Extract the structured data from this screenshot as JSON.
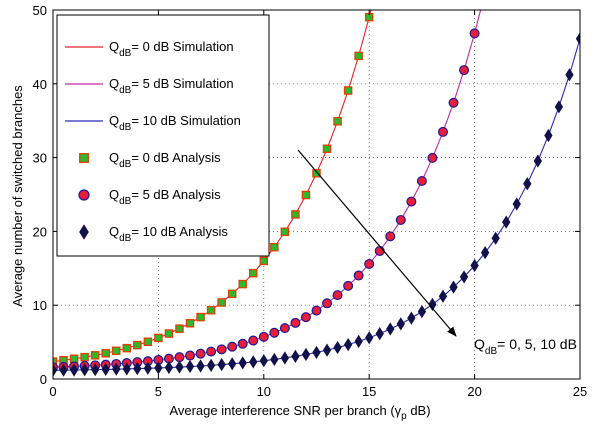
{
  "chart_data": {
    "type": "line",
    "xlabel": "Average interference SNR per branch (γ",
    "xlabel_sub": "p",
    "xlabel_unit": " dB)",
    "ylabel": "Average number of switched branches",
    "xlim": [
      0,
      25
    ],
    "ylim": [
      0,
      50
    ],
    "xticks": [
      0,
      5,
      10,
      15,
      20,
      25
    ],
    "yticks": [
      0,
      10,
      20,
      30,
      40,
      50
    ],
    "grid": true,
    "legend_position": "top-left",
    "annotation": {
      "prefix": "Q",
      "sub": "dB",
      "suffix": "= 0, 5, 10 dB"
    },
    "series": [
      {
        "name_prefix": "Q",
        "name_sub": "dB",
        "name_suffix": "= 0 dB Simulation",
        "kind": "line",
        "color": "#e8202a",
        "group": "q0"
      },
      {
        "name_prefix": "Q",
        "name_sub": "dB",
        "name_suffix": "= 5 dB Simulation",
        "kind": "line",
        "color": "#c02aa8",
        "group": "q5"
      },
      {
        "name_prefix": "Q",
        "name_sub": "dB",
        "name_suffix": "= 10 dB Simulation",
        "kind": "line",
        "color": "#2a2ab8",
        "group": "q10"
      },
      {
        "name_prefix": "Q",
        "name_sub": "dB",
        "name_suffix": "= 0 dB Analysis",
        "kind": "marker",
        "marker": "square",
        "color": "#2db82d",
        "edge": "#e04000",
        "group": "q0"
      },
      {
        "name_prefix": "Q",
        "name_sub": "dB",
        "name_suffix": "= 5 dB Analysis",
        "kind": "marker",
        "marker": "circle",
        "color": "#e81e3a",
        "edge": "#1a1a9a",
        "group": "q5"
      },
      {
        "name_prefix": "Q",
        "name_sub": "dB",
        "name_suffix": "= 10 dB Analysis",
        "kind": "marker",
        "marker": "diamond",
        "color": "#12124a",
        "edge": "#12124a",
        "group": "q10"
      }
    ],
    "curves": {
      "q0": {
        "x": [
          0,
          0.5,
          1,
          1.5,
          2,
          2.5,
          3,
          3.5,
          4,
          4.5,
          5,
          5.5,
          6,
          6.5,
          7,
          7.5,
          8,
          8.5,
          9,
          9.5,
          10,
          10.5,
          11,
          11.5,
          12,
          12.5,
          13,
          13.5,
          14,
          14.5,
          15,
          15.5
        ],
        "y": [
          2.36,
          2.54,
          2.74,
          2.96,
          3.21,
          3.49,
          3.82,
          4.18,
          4.59,
          5.05,
          5.57,
          6.16,
          6.82,
          7.56,
          8.39,
          9.32,
          10.37,
          11.54,
          12.86,
          14.34,
          16.0,
          17.86,
          19.95,
          22.3,
          24.93,
          27.88,
          31.2,
          34.92,
          39.09,
          43.78,
          49.03,
          54.94
        ]
      },
      "q5": {
        "x": [
          0,
          0.5,
          1,
          1.5,
          2,
          2.5,
          3,
          3.5,
          4,
          4.5,
          5,
          5.5,
          6,
          6.5,
          7,
          7.5,
          8,
          8.5,
          9,
          9.5,
          10,
          10.5,
          11,
          11.5,
          12,
          12.5,
          13,
          13.5,
          14,
          14.5,
          15,
          15.5,
          16,
          16.5,
          17,
          17.5,
          18,
          18.5,
          19,
          19.5,
          20,
          20.5
        ],
        "y": [
          1.58,
          1.64,
          1.7,
          1.77,
          1.85,
          1.94,
          2.04,
          2.16,
          2.28,
          2.42,
          2.58,
          2.76,
          2.96,
          3.18,
          3.43,
          3.71,
          4.02,
          4.38,
          4.77,
          5.21,
          5.71,
          6.27,
          6.89,
          7.6,
          8.38,
          9.27,
          10.26,
          11.37,
          12.62,
          14.02,
          15.59,
          17.35,
          19.33,
          21.55,
          24.04,
          26.83,
          29.96,
          33.48,
          37.43,
          41.86,
          46.83,
          52.41
        ]
      },
      "q10": {
        "x": [
          0,
          0.5,
          1,
          1.5,
          2,
          2.5,
          3,
          3.5,
          4,
          4.5,
          5,
          5.5,
          6,
          6.5,
          7,
          7.5,
          8,
          8.5,
          9,
          9.5,
          10,
          10.5,
          11,
          11.5,
          12,
          12.5,
          13,
          13.5,
          14,
          14.5,
          15,
          15.5,
          16,
          16.5,
          17,
          17.5,
          18,
          18.5,
          19,
          19.5,
          20,
          20.5,
          21,
          21.5,
          22,
          22.5,
          23,
          23.5,
          24,
          24.5,
          25
        ],
        "y": [
          1.18,
          1.2,
          1.22,
          1.25,
          1.27,
          1.3,
          1.33,
          1.37,
          1.41,
          1.45,
          1.5,
          1.55,
          1.62,
          1.69,
          1.76,
          1.85,
          1.95,
          2.06,
          2.18,
          2.32,
          2.48,
          2.65,
          2.85,
          3.07,
          3.32,
          3.6,
          3.91,
          4.26,
          4.66,
          5.1,
          5.59,
          6.15,
          6.77,
          7.47,
          8.25,
          9.13,
          10.11,
          11.21,
          12.45,
          13.83,
          15.38,
          17.12,
          19.07,
          21.26,
          23.71,
          26.46,
          29.54,
          33.0,
          36.88,
          41.23,
          46.11
        ]
      }
    }
  }
}
